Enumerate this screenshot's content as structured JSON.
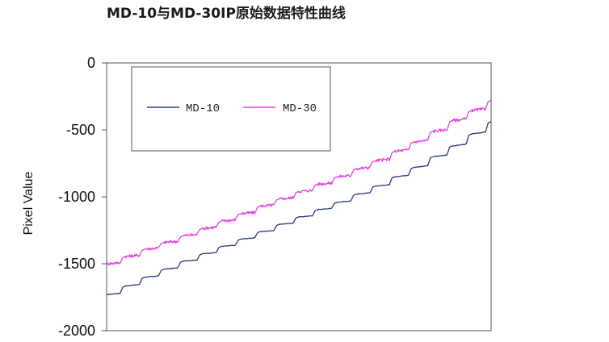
{
  "chart_data": {
    "type": "line",
    "title": "MD-10与MD-30IP原始数据特性曲线",
    "ylabel": "Pixel Value",
    "xlabel": "",
    "ylim": [
      -2000,
      0
    ],
    "yticks": [
      0,
      -500,
      -1000,
      -1500,
      -2000
    ],
    "ytick_labels": [
      "0",
      "-500",
      "-1000",
      "-1500",
      "-2000"
    ],
    "xlim": [
      0,
      100
    ],
    "grid": false,
    "legend_position": "top-left",
    "series": [
      {
        "name": "MD-10",
        "color": "#2e3a7a",
        "x": [
          0,
          10,
          20,
          30,
          40,
          50,
          60,
          70,
          80,
          90,
          100
        ],
        "y": [
          -1730,
          -1600,
          -1480,
          -1370,
          -1260,
          -1150,
          -1040,
          -920,
          -780,
          -620,
          -440
        ]
      },
      {
        "name": "MD-30",
        "color": "#e040e0",
        "x": [
          0,
          10,
          20,
          30,
          40,
          50,
          60,
          70,
          80,
          90,
          100
        ],
        "y": [
          -1500,
          -1390,
          -1290,
          -1180,
          -1070,
          -960,
          -850,
          -730,
          -590,
          -430,
          -280
        ]
      }
    ]
  }
}
